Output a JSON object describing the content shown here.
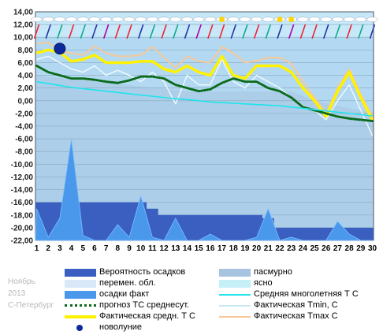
{
  "colors": {
    "background": "#B3D9F2",
    "sky_band": "#C6E8F8",
    "overcast": "#A6C4E0",
    "precip_prob": "#3A5FC0",
    "precip_fact": "#4A98EC",
    "forecast": "#0A6A1A",
    "normal": "#1EE4EC",
    "tmin": "#F0FAFF",
    "tavg": "#FFF200",
    "tmax": "#F6C898",
    "newmoon": "#0A2A9C"
  },
  "caption": {
    "month": "Ноябрь",
    "year": "2013",
    "city": "С-Петербург"
  },
  "legend": [
    {
      "label": "Вероятность осадков",
      "kind": "fill",
      "color": "#3A5FC0"
    },
    {
      "label": "пасмурно",
      "kind": "fill",
      "color": "#A6C4E0"
    },
    {
      "label": "перемен. обл.",
      "kind": "fill",
      "color": "#D8E8F8"
    },
    {
      "label": "ясно",
      "kind": "fill",
      "color": "#C6F0F8"
    },
    {
      "label": "осадки факт",
      "kind": "fill",
      "color": "#4A98EC"
    },
    {
      "label": "Средняя многолетняя Т С",
      "kind": "line",
      "color": "#1EE4EC"
    },
    {
      "label": "прогноз ТС среднесут.",
      "kind": "dotted",
      "color": "#0A6A1A"
    },
    {
      "label": "Фактическая Tmin, С",
      "kind": "line",
      "color": "#C8E8F4"
    },
    {
      "label": "Фактическая средн. Т С",
      "kind": "thick",
      "color": "#FFF200"
    },
    {
      "label": "Фактическая Tmax С",
      "kind": "line",
      "color": "#F6C898"
    },
    {
      "label": "новолуние",
      "kind": "dot",
      "color": "#0A2A9C"
    }
  ],
  "chart_data": {
    "type": "line",
    "x": [
      1,
      2,
      3,
      4,
      5,
      6,
      7,
      8,
      9,
      10,
      11,
      12,
      13,
      14,
      15,
      16,
      17,
      18,
      19,
      20,
      21,
      22,
      23,
      24,
      25,
      26,
      27,
      28,
      29,
      30
    ],
    "ylim": [
      -22,
      14
    ],
    "yticks": [
      "14,00",
      "12,00",
      "10,00",
      "8,00",
      "6,00",
      "4,00",
      "2,00",
      "0,00",
      "-2,00",
      "-4,00",
      "-6,00",
      "-8,00",
      "-10,00",
      "-12,00",
      "-14,00",
      "-16,00",
      "-18,00",
      "-20,00",
      "-22,00"
    ],
    "grid": true,
    "series": [
      {
        "name": "Фактическая Tmax С",
        "values": [
          9.0,
          9.2,
          7.8,
          7.5,
          7.2,
          8.6,
          7.5,
          7.0,
          7.0,
          7.2,
          8.5,
          6.8,
          5.2,
          7.0,
          6.2,
          6.0,
          8.5,
          7.5,
          6.0,
          6.3,
          6.8,
          6.8,
          5.8,
          3.0,
          0.5,
          -2.0,
          2.0,
          5.0,
          1.0,
          -2.5
        ]
      },
      {
        "name": "Фактическая средн. Т С",
        "values": [
          7.5,
          8.0,
          7.6,
          6.2,
          6.5,
          7.2,
          6.0,
          6.0,
          6.0,
          6.2,
          6.2,
          5.0,
          4.5,
          5.5,
          4.5,
          4.0,
          7.0,
          4.0,
          3.5,
          5.5,
          5.5,
          5.5,
          4.5,
          2.0,
          0.0,
          -2.5,
          1.5,
          4.5,
          0.5,
          -3.0
        ]
      },
      {
        "name": "Фактическая Tmin, С",
        "values": [
          6.5,
          7.0,
          6.0,
          5.0,
          4.5,
          5.5,
          4.0,
          4.8,
          4.0,
          3.0,
          4.5,
          3.0,
          -0.5,
          4.0,
          2.5,
          2.5,
          6.5,
          3.0,
          2.0,
          4.0,
          3.0,
          2.0,
          0.5,
          -0.8,
          -1.5,
          -3.0,
          0.0,
          2.5,
          -1.5,
          -5.5
        ]
      },
      {
        "name": "прогноз ТС среднесут.",
        "values": [
          5.5,
          4.5,
          4.0,
          3.5,
          3.5,
          3.3,
          3.0,
          2.8,
          3.2,
          3.8,
          3.8,
          3.5,
          2.5,
          2.0,
          1.5,
          1.8,
          2.8,
          3.5,
          3.0,
          3.0,
          2.0,
          1.5,
          0.5,
          -1.0,
          -1.5,
          -2.0,
          -2.5,
          -2.8,
          -3.0,
          -3.2
        ]
      },
      {
        "name": "Средняя многолетняя Т С",
        "values": [
          3.0,
          2.7,
          2.4,
          2.1,
          1.9,
          1.7,
          1.5,
          1.3,
          1.1,
          0.9,
          0.7,
          0.5,
          0.3,
          0.2,
          0.0,
          -0.2,
          -0.3,
          -0.4,
          -0.5,
          -0.6,
          -0.7,
          -0.8,
          -1.0,
          -1.2,
          -1.4,
          -1.6,
          -1.8,
          -2.0,
          -2.2,
          -2.4
        ]
      }
    ],
    "precip_probability": [
      -16,
      -16,
      -16,
      -16,
      -16,
      -16,
      -16,
      -16,
      -16,
      -16,
      -17,
      -18,
      -18,
      -18,
      -18,
      -18,
      -18,
      -18,
      -18,
      -18,
      -18.5,
      -20,
      -20,
      -20,
      -20,
      -20,
      -20,
      -20,
      -20,
      -20
    ],
    "precip_fact": [
      -17,
      -21.5,
      -18.5,
      -6,
      -21.2,
      -22,
      -22,
      -19.5,
      -21.5,
      -15,
      -21.5,
      -22,
      -18.5,
      -22,
      -22,
      -21,
      -22,
      -22,
      -22,
      -21.5,
      -17,
      -22,
      -21.5,
      -22,
      -22,
      -22,
      -19,
      -21,
      -22,
      -22
    ],
    "newmoon_day": 3,
    "newmoon_value": 8.2
  }
}
